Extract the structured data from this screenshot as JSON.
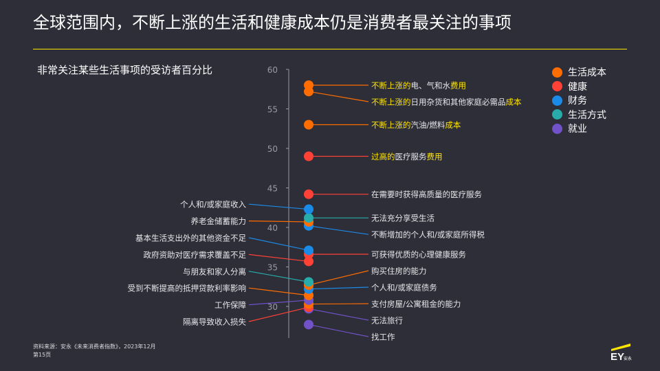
{
  "header": {
    "title": "全球范围内，不断上涨的生活和健康成本仍是消费者最关注的事项",
    "subtitle": "非常关注某些生活事项的受访者百分比"
  },
  "footer": {
    "source": "资料来源：安永《未来消费者指数》，2023年12月",
    "page": "第15页",
    "logo_text": "EY",
    "logo_subtext": "安永"
  },
  "colors": {
    "background": "#2e2e38",
    "accent": "#ffe600",
    "axis": "#9a9aa6",
    "highlight_text": "#ffe600",
    "label_text": "#e6e6ea"
  },
  "chart_data": {
    "type": "scatter",
    "title": "非常关注某些生活事项的受访者百分比",
    "ylim": [
      26,
      60
    ],
    "yticks": [
      30,
      35,
      40,
      45,
      50,
      55,
      60
    ],
    "legend_position": "top-right",
    "categories": [
      {
        "name": "生活成本",
        "color": "#ff6d00"
      },
      {
        "name": "健康",
        "color": "#ff4136"
      },
      {
        "name": "财务",
        "color": "#1b8be8"
      },
      {
        "name": "生活方式",
        "color": "#27acaa"
      },
      {
        "name": "就业",
        "color": "#7152c9"
      }
    ],
    "points": [
      {
        "label": "不断上涨的电、气和水费用",
        "label_parts": [
          {
            "t": "不断上涨的",
            "hl": true
          },
          {
            "t": "电、气和水",
            "hl": false
          },
          {
            "t": "费用",
            "hl": true
          }
        ],
        "value": 58,
        "category": "生活成本",
        "side": "right"
      },
      {
        "label": "不断上涨的日用杂货和其他家庭必需品成本",
        "label_parts": [
          {
            "t": "不断上涨的",
            "hl": true
          },
          {
            "t": "日用杂货和其他家庭必需品",
            "hl": false
          },
          {
            "t": "成本",
            "hl": true
          }
        ],
        "value": 57.2,
        "category": "生活成本",
        "side": "right"
      },
      {
        "label": "不断上涨的汽油/燃料成本",
        "label_parts": [
          {
            "t": "不断上涨的",
            "hl": true
          },
          {
            "t": "汽油/燃料",
            "hl": false
          },
          {
            "t": "成本",
            "hl": true
          }
        ],
        "value": 53,
        "category": "生活成本",
        "side": "right"
      },
      {
        "label": "过高的医疗服务费用",
        "label_parts": [
          {
            "t": "过高的",
            "hl": true
          },
          {
            "t": "医疗服务",
            "hl": false
          },
          {
            "t": "费用",
            "hl": true
          }
        ],
        "value": 49,
        "category": "健康",
        "side": "right"
      },
      {
        "label": "在需要时获得高质量的医疗服务",
        "value": 44.2,
        "category": "健康",
        "side": "right"
      },
      {
        "label": "个人和/或家庭收入",
        "value": 42.3,
        "category": "财务",
        "side": "left"
      },
      {
        "label": "无法充分享受生活",
        "value": 41.2,
        "category": "生活方式",
        "side": "right"
      },
      {
        "label": "养老金储蓄能力",
        "value": 40.7,
        "category": "生活成本",
        "side": "left"
      },
      {
        "label": "不断增加的个人和/或家庭所得税",
        "value": 40.2,
        "category": "财务",
        "side": "right"
      },
      {
        "label": "基本生活支出外的其他资金不足",
        "value": 37.1,
        "category": "财务",
        "side": "left"
      },
      {
        "label": "可获得优质的心理健康服务",
        "value": 36.6,
        "category": "健康",
        "side": "right"
      },
      {
        "label": "政府资助对医疗需求覆盖不足",
        "value": 35.7,
        "category": "健康",
        "side": "left"
      },
      {
        "label": "与朋友和家人分离",
        "value": 33.1,
        "category": "生活方式",
        "side": "left"
      },
      {
        "label": "购买住房的能力",
        "value": 32.7,
        "category": "生活成本",
        "side": "right"
      },
      {
        "label": "个人和/或家庭债务",
        "value": 32.2,
        "category": "财务",
        "side": "right"
      },
      {
        "label": "受到不断提高的抵押贷款利率影响",
        "value": 31.4,
        "category": "生活成本",
        "side": "left"
      },
      {
        "label": "工作保障",
        "value": 30.8,
        "category": "就业",
        "side": "left"
      },
      {
        "label": "支付房屋/公寓租金的能力",
        "value": 30.3,
        "category": "生活成本",
        "side": "right"
      },
      {
        "label": "隔离导致收入损失",
        "value": 29.9,
        "category": "健康",
        "side": "left"
      },
      {
        "label": "无法旅行",
        "value": 29.7,
        "category": "就业",
        "side": "right"
      },
      {
        "label": "找工作",
        "value": 27.7,
        "category": "就业",
        "side": "right"
      }
    ]
  }
}
